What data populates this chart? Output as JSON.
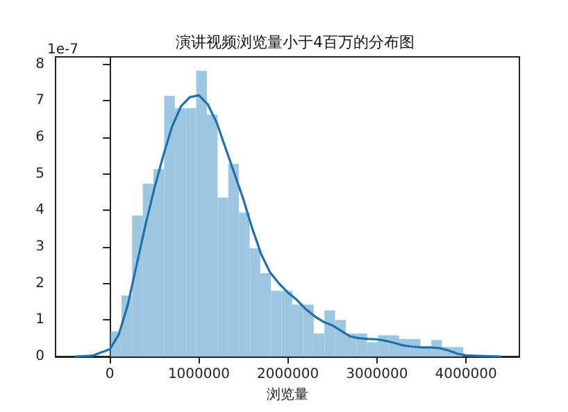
{
  "chart_data": {
    "type": "histogram",
    "title": "演讲视频浏览量小于4百万的分布图",
    "xlabel": "浏览量",
    "annotations": [
      "1e-7"
    ],
    "bins": [
      10000,
      130000,
      250000,
      370000,
      490000,
      610000,
      730000,
      850000,
      970000,
      1090000,
      1210000,
      1330000,
      1450000,
      1570000,
      1690000,
      1810000,
      1930000,
      2050000,
      2170000,
      2290000,
      2410000,
      2530000,
      2650000,
      2770000,
      2890000,
      3010000,
      3130000,
      3250000,
      3370000,
      3490000,
      3610000,
      3730000,
      3850000,
      3970000
    ],
    "values": [
      0.69,
      1.67,
      3.86,
      4.73,
      5.13,
      7.13,
      6.8,
      6.8,
      7.82,
      6.62,
      4.35,
      5.27,
      3.94,
      2.96,
      2.28,
      1.8,
      1.8,
      1.42,
      1.42,
      0.63,
      1.26,
      1.0,
      0.63,
      0.63,
      0.39,
      0.58,
      0.58,
      0.48,
      0.48,
      0.25,
      0.45,
      0.26,
      0.26
    ],
    "color": "#9dc6e0",
    "series": [
      {
        "type": "line",
        "color": "#1f6fb0",
        "x": [
          -400000,
          -200000,
          0,
          100000,
          200000,
          300000,
          400000,
          500000,
          600000,
          700000,
          800000,
          900000,
          1000000,
          1100000,
          1200000,
          1300000,
          1400000,
          1500000,
          1600000,
          1700000,
          1800000,
          1900000,
          2000000,
          2100000,
          2200000,
          2300000,
          2400000,
          2500000,
          2600000,
          2700000,
          2800000,
          2900000,
          3000000,
          3100000,
          3200000,
          3300000,
          3400000,
          3500000,
          3600000,
          3700000,
          3800000,
          3900000,
          4000000,
          4200000,
          4400000
        ],
        "values": [
          0,
          0.02,
          0.2,
          0.6,
          1.4,
          2.5,
          3.6,
          4.6,
          5.5,
          6.3,
          6.85,
          7.1,
          7.15,
          6.9,
          6.4,
          5.7,
          5.0,
          4.3,
          3.5,
          2.8,
          2.3,
          2.0,
          1.75,
          1.55,
          1.3,
          1.1,
          0.95,
          0.85,
          0.7,
          0.55,
          0.5,
          0.48,
          0.47,
          0.43,
          0.37,
          0.3,
          0.27,
          0.25,
          0.25,
          0.23,
          0.17,
          0.08,
          0.03,
          0.01,
          0
        ]
      }
    ],
    "xlim": [
      -610000,
      4600000
    ],
    "xticks": [
      0,
      1000000,
      2000000,
      3000000,
      4000000
    ],
    "ylim": [
      0,
      8.2
    ],
    "yticks": [
      0,
      1,
      2,
      3,
      4,
      5,
      6,
      7,
      8
    ]
  }
}
